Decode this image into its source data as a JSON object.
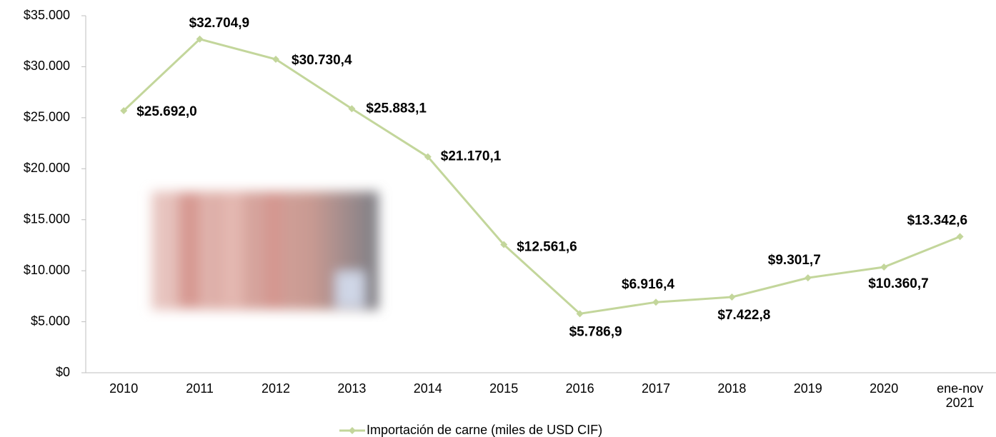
{
  "chart_data": {
    "type": "line",
    "categories": [
      "2010",
      "2011",
      "2012",
      "2013",
      "2014",
      "2015",
      "2016",
      "2017",
      "2018",
      "2019",
      "2020",
      "ene-nov 2021"
    ],
    "series": [
      {
        "name": "Importación de carne (miles de USD CIF)",
        "color": "#c3d69b",
        "values": [
          25692.0,
          32704.9,
          30730.4,
          25883.1,
          21170.1,
          12561.6,
          5786.9,
          6916.4,
          7422.8,
          9301.7,
          10360.7,
          13342.6
        ],
        "value_labels": [
          "$25.692,0",
          "$32.704,9",
          "$30.730,4",
          "$25.883,1",
          "$21.170,1",
          "$12.561,6",
          "$5.786,9",
          "$6.916,4",
          "$7.422,8",
          "$9.301,7",
          "$10.360,7",
          "$13.342,6"
        ]
      }
    ],
    "ylim": [
      0,
      35000
    ],
    "yticks": [
      {
        "value": 0,
        "label": "$0"
      },
      {
        "value": 5000,
        "label": "$5.000"
      },
      {
        "value": 10000,
        "label": "$10.000"
      },
      {
        "value": 15000,
        "label": "$15.000"
      },
      {
        "value": 20000,
        "label": "$20.000"
      },
      {
        "value": 25000,
        "label": "$25.000"
      },
      {
        "value": 30000,
        "label": "$30.000"
      },
      {
        "value": 35000,
        "label": "$35.000"
      }
    ],
    "grid": false,
    "legend": "bottom"
  }
}
